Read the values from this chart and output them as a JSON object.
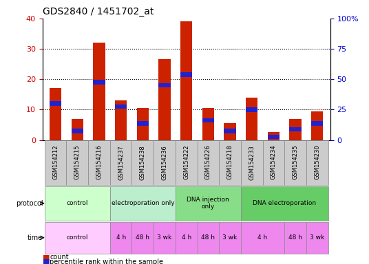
{
  "title": "GDS2840 / 1451702_at",
  "categories": [
    "GSM154212",
    "GSM154215",
    "GSM154216",
    "GSM154237",
    "GSM154238",
    "GSM154236",
    "GSM154222",
    "GSM154226",
    "GSM154218",
    "GSM154233",
    "GSM154234",
    "GSM154235",
    "GSM154230"
  ],
  "red_values": [
    17,
    7,
    32,
    13,
    10.5,
    26.5,
    39,
    10.5,
    5.5,
    14,
    2.5,
    7,
    9.5
  ],
  "blue_values": [
    12,
    3,
    19,
    11,
    5.5,
    18,
    21.5,
    6.5,
    3,
    10,
    1,
    3.5,
    5.5
  ],
  "left_ylim": [
    0,
    40
  ],
  "right_ylim": [
    0,
    100
  ],
  "left_yticks": [
    0,
    10,
    20,
    30,
    40
  ],
  "right_yticks": [
    0,
    25,
    50,
    75,
    100
  ],
  "right_yticklabels": [
    "0",
    "25",
    "50",
    "75",
    "100%"
  ],
  "left_ycolor": "#cc0000",
  "right_ycolor": "#0000cc",
  "bar_red": "#cc2200",
  "bar_blue": "#2222cc",
  "bar_width": 0.55,
  "protocol_groups": [
    {
      "label": "control",
      "start": 0,
      "end": 3,
      "color": "#ccffcc"
    },
    {
      "label": "electroporation only",
      "start": 3,
      "end": 6,
      "color": "#bbeecc"
    },
    {
      "label": "DNA injection\nonly",
      "start": 6,
      "end": 9,
      "color": "#88dd88"
    },
    {
      "label": "DNA electroporation",
      "start": 9,
      "end": 13,
      "color": "#66cc66"
    }
  ],
  "time_groups": [
    {
      "label": "control",
      "start": 0,
      "end": 3,
      "color": "#ffccff"
    },
    {
      "label": "4 h",
      "start": 3,
      "end": 4,
      "color": "#ee88ee"
    },
    {
      "label": "48 h",
      "start": 4,
      "end": 5,
      "color": "#ee88ee"
    },
    {
      "label": "3 wk",
      "start": 5,
      "end": 6,
      "color": "#ee88ee"
    },
    {
      "label": "4 h",
      "start": 6,
      "end": 7,
      "color": "#ee88ee"
    },
    {
      "label": "48 h",
      "start": 7,
      "end": 8,
      "color": "#ee88ee"
    },
    {
      "label": "3 wk",
      "start": 8,
      "end": 9,
      "color": "#ee88ee"
    },
    {
      "label": "4 h",
      "start": 9,
      "end": 11,
      "color": "#ee88ee"
    },
    {
      "label": "48 h",
      "start": 11,
      "end": 12,
      "color": "#ee88ee"
    },
    {
      "label": "3 wk",
      "start": 12,
      "end": 13,
      "color": "#ee88ee"
    }
  ],
  "legend_items": [
    {
      "label": "count",
      "color": "#cc2200"
    },
    {
      "label": "percentile rank within the sample",
      "color": "#2222cc"
    }
  ],
  "background_color": "#ffffff",
  "title_fontsize": 10
}
